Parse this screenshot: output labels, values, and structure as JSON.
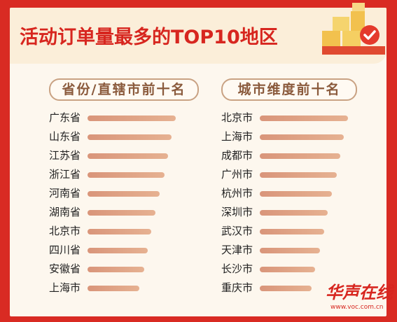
{
  "title": "活动订单量最多的TOP10地区",
  "colors": {
    "background": "#d92b23",
    "title": "#d7261f",
    "bar": "#e0a080",
    "panel": "#fdf7ee"
  },
  "watermark": {
    "text": "华声在线",
    "url": "www.voc.com.cn"
  },
  "chart_data": [
    {
      "type": "bar",
      "title": "省份/直辖市前十名",
      "categories": [
        "广东省",
        "山东省",
        "江苏省",
        "浙江省",
        "河南省",
        "湖南省",
        "北京市",
        "四川省",
        "安徽省",
        "上海市"
      ],
      "values": [
        10,
        9.5,
        9.1,
        8.7,
        8.2,
        7.7,
        7.2,
        6.8,
        6.4,
        5.9
      ]
    },
    {
      "type": "bar",
      "title": "城市维度前十名",
      "categories": [
        "北京市",
        "上海市",
        "成都市",
        "广州市",
        "杭州市",
        "深圳市",
        "武汉市",
        "天津市",
        "长沙市",
        "重庆市"
      ],
      "values": [
        10,
        9.5,
        9.1,
        8.7,
        8.2,
        7.7,
        7.3,
        6.8,
        6.3,
        5.9
      ]
    }
  ]
}
